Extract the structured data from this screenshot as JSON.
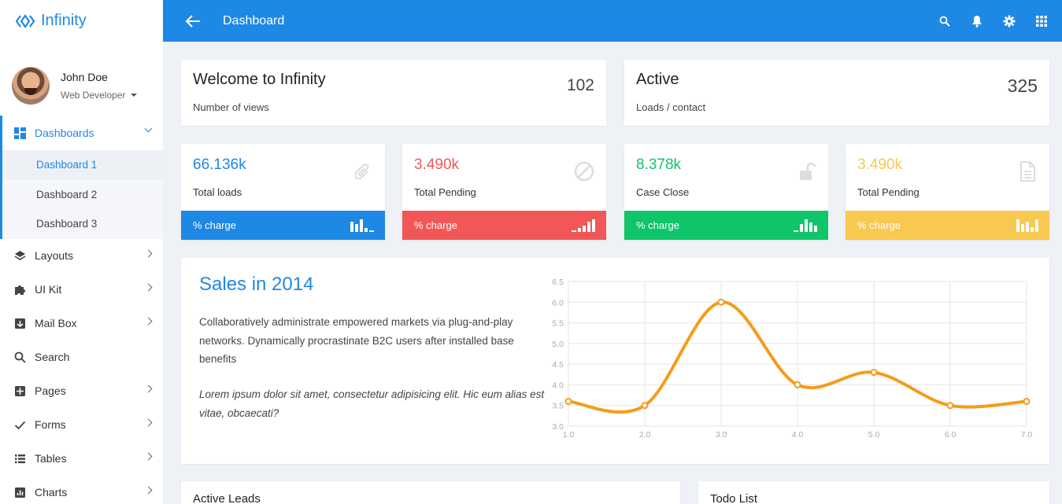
{
  "brand": {
    "name": "Infinity"
  },
  "user": {
    "name": "John Doe",
    "role": "Web Developer"
  },
  "sidebar": {
    "dashboards": {
      "label": "Dashboards",
      "items": [
        "Dashboard 1",
        "Dashboard 2",
        "Dashboard 3"
      ]
    },
    "items": [
      {
        "label": "Layouts",
        "icon": "layers-icon"
      },
      {
        "label": "UI Kit",
        "icon": "puzzle-icon"
      },
      {
        "label": "Mail Box",
        "icon": "inbox-icon"
      },
      {
        "label": "Search",
        "icon": "search-icon"
      },
      {
        "label": "Pages",
        "icon": "pages-icon"
      },
      {
        "label": "Forms",
        "icon": "check-icon"
      },
      {
        "label": "Tables",
        "icon": "list-icon"
      },
      {
        "label": "Charts",
        "icon": "bar-chart-icon"
      }
    ]
  },
  "topbar": {
    "title": "Dashboard"
  },
  "welcome": {
    "title": "Welcome to Infinity",
    "subtitle": "Number of views",
    "value": "102"
  },
  "active": {
    "title": "Active",
    "subtitle": "Loads / contact",
    "value": "325"
  },
  "stats": [
    {
      "value": "66.136k",
      "label": "Total loads",
      "bar": "% charge",
      "color": "#1e88e5",
      "icon": "paperclip-icon"
    },
    {
      "value": "3.490k",
      "label": "Total Pending",
      "bar": "% charge",
      "color": "#f25757",
      "icon": "ban-icon"
    },
    {
      "value": "8.378k",
      "label": "Case Close",
      "bar": "% charge",
      "color": "#10c469",
      "icon": "unlock-icon"
    },
    {
      "value": "3.490k",
      "label": "Total Pending",
      "bar": "% charge",
      "color": "#f9c851",
      "icon": "document-icon"
    }
  ],
  "sales": {
    "title": "Sales in 2014",
    "paragraph": "Collaboratively administrate empowered markets via plug-and-play networks. Dynamically procrastinate B2C users after installed base benefits",
    "quote": "Lorem ipsum dolor sit amet, consectetur adipisicing elit. Hic eum alias est vitae, obcaecati?"
  },
  "chart_data": {
    "type": "line",
    "x": [
      1.0,
      2.0,
      3.0,
      4.0,
      5.0,
      6.0,
      7.0
    ],
    "values": [
      3.6,
      3.5,
      6.0,
      4.0,
      4.3,
      3.5,
      3.6
    ],
    "xlim": [
      1.0,
      7.0
    ],
    "ylim": [
      3.0,
      6.5
    ],
    "x_ticks": [
      "1.0",
      "2.0",
      "3.0",
      "4.0",
      "5.0",
      "6.0",
      "7.0"
    ],
    "y_ticks": [
      "3.0",
      "3.5",
      "4.0",
      "4.5",
      "5.0",
      "5.5",
      "6.0",
      "6.5"
    ],
    "color": "#f59c1a",
    "grid": true
  },
  "bottom": {
    "left_title": "Active Leads",
    "right_title": "Todo List"
  }
}
